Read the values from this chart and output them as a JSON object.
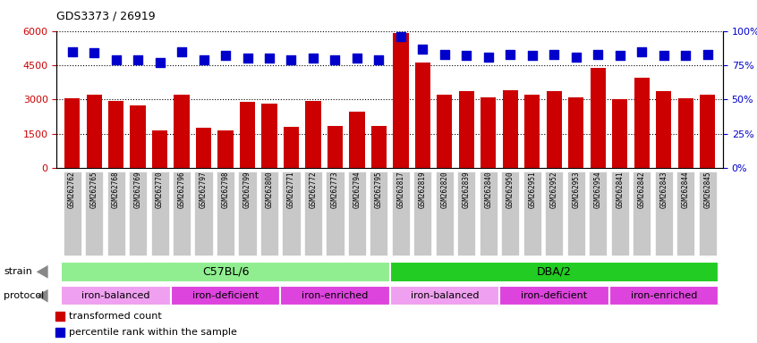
{
  "title": "GDS3373 / 26919",
  "samples": [
    "GSM262762",
    "GSM262765",
    "GSM262768",
    "GSM262769",
    "GSM262770",
    "GSM262796",
    "GSM262797",
    "GSM262798",
    "GSM262799",
    "GSM262800",
    "GSM262771",
    "GSM262772",
    "GSM262773",
    "GSM262794",
    "GSM262795",
    "GSM262817",
    "GSM262819",
    "GSM262820",
    "GSM262839",
    "GSM262840",
    "GSM262950",
    "GSM262951",
    "GSM262952",
    "GSM262953",
    "GSM262954",
    "GSM262841",
    "GSM262842",
    "GSM262843",
    "GSM262844",
    "GSM262845"
  ],
  "bar_values": [
    3050,
    3200,
    2950,
    2750,
    1650,
    3200,
    1750,
    1650,
    2900,
    2800,
    1800,
    2950,
    1850,
    2450,
    1850,
    5900,
    4600,
    3200,
    3350,
    3100,
    3400,
    3200,
    3350,
    3100,
    4400,
    3000,
    3950,
    3350,
    3050,
    3200
  ],
  "percentile_values": [
    85,
    84,
    79,
    79,
    77,
    85,
    79,
    82,
    80,
    80,
    79,
    80,
    79,
    80,
    79,
    96,
    87,
    83,
    82,
    81,
    83,
    82,
    83,
    81,
    83,
    82,
    85,
    82,
    82,
    83
  ],
  "bar_color": "#cc0000",
  "percentile_color": "#0000cc",
  "ylim_left": [
    0,
    6000
  ],
  "ylim_right": [
    0,
    100
  ],
  "yticks_left": [
    0,
    1500,
    3000,
    4500,
    6000
  ],
  "yticks_right": [
    0,
    25,
    50,
    75,
    100
  ],
  "strain_groups": [
    {
      "label": "C57BL/6",
      "start": 0,
      "end": 14,
      "color": "#90ee90"
    },
    {
      "label": "DBA/2",
      "start": 15,
      "end": 29,
      "color": "#22cc22"
    }
  ],
  "protocol_groups": [
    {
      "label": "iron-balanced",
      "start": 0,
      "end": 4,
      "color": "#f0a0f0"
    },
    {
      "label": "iron-deficient",
      "start": 5,
      "end": 9,
      "color": "#dd44dd"
    },
    {
      "label": "iron-enriched",
      "start": 10,
      "end": 14,
      "color": "#dd44dd"
    },
    {
      "label": "iron-balanced",
      "start": 15,
      "end": 19,
      "color": "#f0a0f0"
    },
    {
      "label": "iron-deficient",
      "start": 20,
      "end": 24,
      "color": "#dd44dd"
    },
    {
      "label": "iron-enriched",
      "start": 25,
      "end": 29,
      "color": "#dd44dd"
    }
  ],
  "tick_bg_color": "#c8c8c8",
  "plot_bg_color": "#ffffff",
  "fig_bg_color": "#ffffff"
}
